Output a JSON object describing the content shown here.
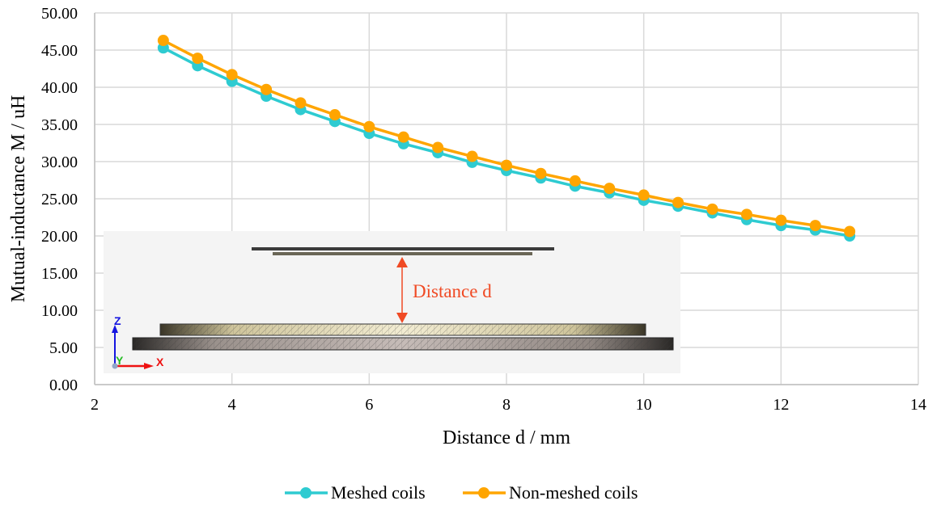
{
  "chart_data": {
    "type": "line",
    "title": "",
    "xlabel": "Distance d / mm",
    "ylabel": "Mutual-inductance M / uH",
    "xlim": [
      2,
      14
    ],
    "ylim": [
      0,
      50
    ],
    "x_ticks": [
      "2",
      "4",
      "6",
      "8",
      "10",
      "12",
      "14"
    ],
    "x_tick_values": [
      2,
      4,
      6,
      8,
      10,
      12,
      14
    ],
    "y_ticks": [
      "0.00",
      "5.00",
      "10.00",
      "15.00",
      "20.00",
      "25.00",
      "30.00",
      "35.00",
      "40.00",
      "45.00",
      "50.00"
    ],
    "y_tick_values": [
      0,
      5,
      10,
      15,
      20,
      25,
      30,
      35,
      40,
      45,
      50
    ],
    "grid": true,
    "legend_position": "bottom",
    "x": [
      3,
      3.5,
      4,
      4.5,
      5,
      5.5,
      6,
      6.5,
      7,
      7.5,
      8,
      8.5,
      9,
      9.5,
      10,
      10.5,
      11,
      11.5,
      12,
      12.5,
      13
    ],
    "series": [
      {
        "name": "Meshed coils",
        "color": "#2ecbd1",
        "values": [
          45.3,
          42.9,
          40.8,
          38.8,
          37.0,
          35.4,
          33.8,
          32.4,
          31.2,
          29.9,
          28.8,
          27.8,
          26.7,
          25.8,
          24.8,
          24.0,
          23.1,
          22.2,
          21.4,
          20.8,
          20.0
        ]
      },
      {
        "name": "Non-meshed coils",
        "color": "#ffa500",
        "values": [
          46.3,
          43.9,
          41.7,
          39.7,
          37.9,
          36.3,
          34.7,
          33.3,
          31.9,
          30.7,
          29.5,
          28.4,
          27.4,
          26.4,
          25.5,
          24.5,
          23.6,
          22.9,
          22.1,
          21.4,
          20.6
        ]
      }
    ]
  },
  "inset": {
    "label": "Distance d",
    "label_color": "#f04a24",
    "axis_labels": {
      "z": "Z",
      "y": "Y",
      "x": "X"
    }
  }
}
